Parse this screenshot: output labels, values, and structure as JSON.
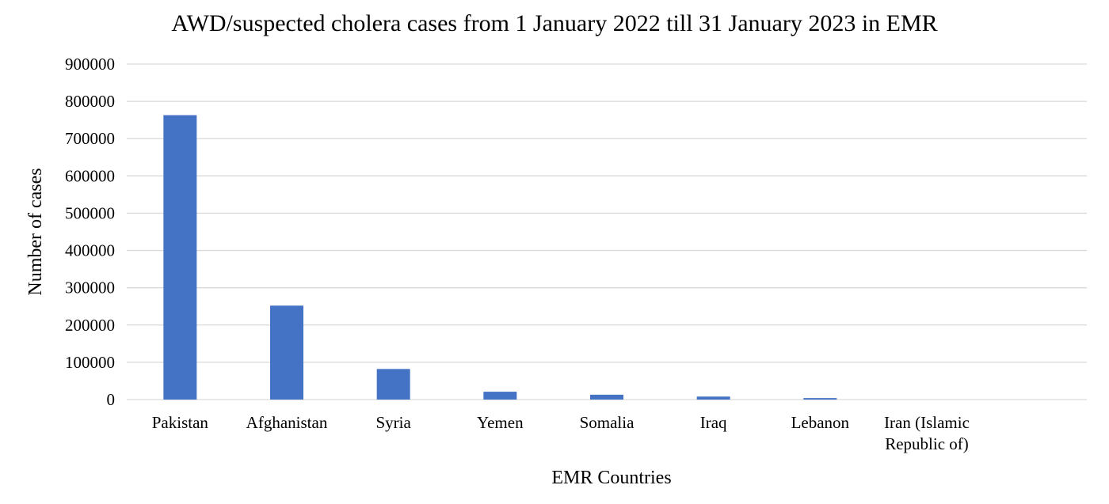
{
  "chart_data": {
    "type": "bar",
    "title": "AWD/suspected cholera cases from 1 January 2022 till 31 January 2023  in EMR",
    "xlabel": "EMR Countries",
    "ylabel": "Number of cases",
    "categories": [
      [
        "Pakistan"
      ],
      [
        "Afghanistan"
      ],
      [
        "Syria"
      ],
      [
        "Yemen"
      ],
      [
        "Somalia"
      ],
      [
        "Iraq"
      ],
      [
        "Lebanon"
      ],
      [
        "Iran (Islamic",
        "Republic of)"
      ]
    ],
    "values": [
      763000,
      252000,
      82000,
      21000,
      13000,
      8000,
      4000,
      0
    ],
    "ylim": [
      0,
      900000
    ],
    "yticks": [
      "0",
      "100000",
      "200000",
      "300000",
      "400000",
      "500000",
      "600000",
      "700000",
      "800000",
      "900000"
    ],
    "grid": true,
    "legend": "none",
    "bar_color": "#4472c4",
    "grid_color": "#d9d9d9"
  }
}
